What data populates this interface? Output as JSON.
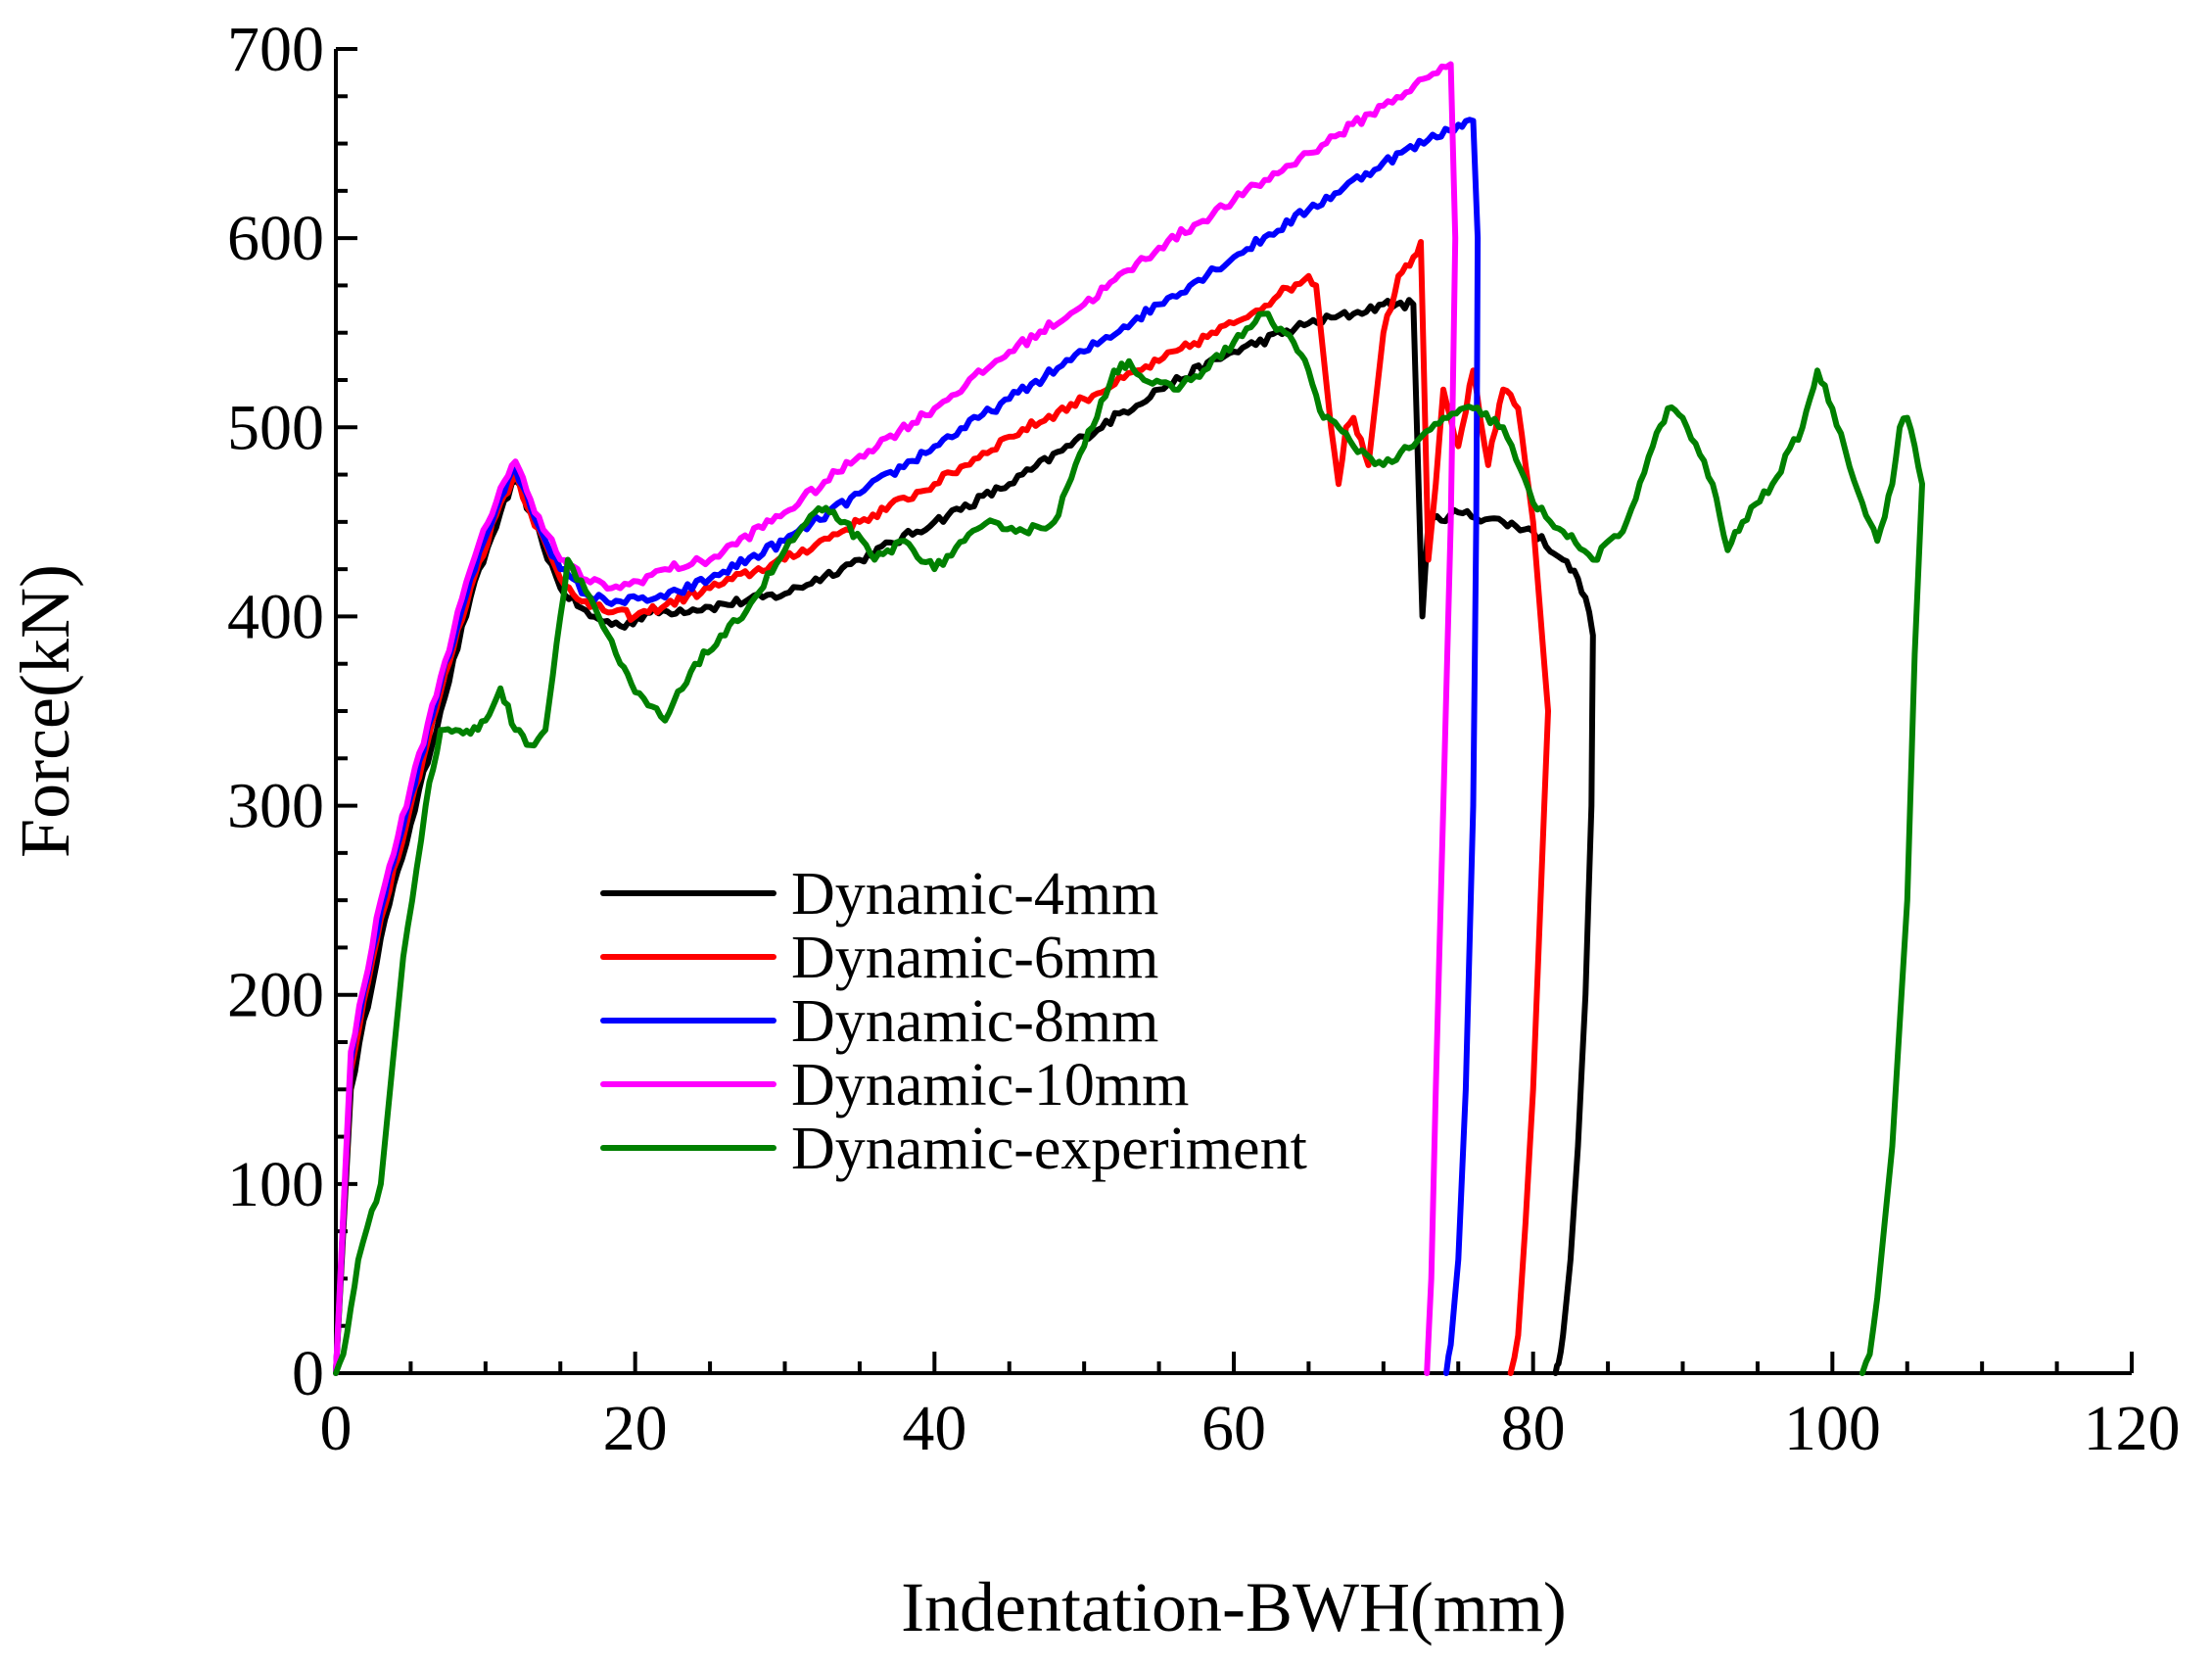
{
  "chart_data": {
    "type": "line",
    "xlabel": "Indentation-BWH(mm)",
    "ylabel": "Force(kN)",
    "xlim": [
      0,
      120
    ],
    "ylim": [
      0,
      700
    ],
    "xticks": [
      0,
      20,
      40,
      60,
      80,
      100,
      120
    ],
    "yticks": [
      0,
      100,
      200,
      300,
      400,
      500,
      600,
      700
    ],
    "grid": false,
    "legend_position": "lower-center",
    "series": [
      {
        "name": "Dynamic-4mm",
        "color": "#000000",
        "x": [
          0,
          1,
          3,
          5,
          7,
          9,
          11,
          12,
          13,
          15,
          17,
          19,
          21,
          25,
          30,
          35,
          40,
          45,
          50,
          55,
          60,
          65,
          68,
          70,
          72,
          72.6,
          73,
          75,
          78,
          80,
          82,
          83,
          83.5,
          84,
          83.9,
          83.5,
          83,
          82.5,
          82,
          81.7,
          81.5
        ],
        "y": [
          0,
          150,
          230,
          290,
          350,
          410,
          455,
          472,
          455,
          415,
          400,
          395,
          402,
          405,
          412,
          430,
          450,
          470,
          495,
          520,
          540,
          555,
          560,
          565,
          565,
          400,
          450,
          455,
          450,
          445,
          430,
          420,
          410,
          390,
          300,
          200,
          120,
          60,
          20,
          5,
          0
        ]
      },
      {
        "name": "Dynamic-6mm",
        "color": "#ff0000",
        "x": [
          0,
          1,
          3,
          5,
          7,
          9,
          11,
          12,
          13,
          15,
          17,
          20,
          25,
          30,
          35,
          40,
          45,
          50,
          55,
          60,
          63,
          65,
          65.5,
          66.5,
          67,
          67.5,
          68,
          69,
          70,
          71,
          72,
          72.5,
          73,
          73.5,
          74,
          75,
          76,
          77,
          78,
          79,
          79.5,
          80,
          80.5,
          81,
          80.5,
          80,
          79.5,
          79,
          78.5
        ],
        "y": [
          0,
          160,
          240,
          300,
          360,
          415,
          460,
          475,
          455,
          420,
          405,
          400,
          415,
          430,
          450,
          470,
          495,
          515,
          535,
          555,
          570,
          580,
          575,
          500,
          470,
          500,
          505,
          480,
          550,
          580,
          590,
          598,
          430,
          470,
          520,
          490,
          530,
          480,
          520,
          510,
          480,
          450,
          400,
          350,
          250,
          150,
          80,
          20,
          0
        ]
      },
      {
        "name": "Dynamic-8mm",
        "color": "#0000ff",
        "x": [
          0,
          1,
          3,
          5,
          7,
          9,
          11,
          12,
          13,
          15,
          17,
          19,
          22,
          25,
          30,
          35,
          40,
          45,
          50,
          55,
          60,
          65,
          70,
          73,
          75,
          76,
          76.3,
          76.2,
          76,
          75.5,
          75,
          74.5,
          74.2
        ],
        "y": [
          0,
          165,
          245,
          305,
          365,
          420,
          463,
          478,
          458,
          425,
          410,
          408,
          410,
          420,
          440,
          465,
          490,
          515,
          540,
          565,
          590,
          615,
          640,
          652,
          660,
          662,
          600,
          450,
          300,
          150,
          60,
          15,
          0
        ]
      },
      {
        "name": "Dynamic-10mm",
        "color": "#ff00ff",
        "x": [
          0,
          1,
          3,
          5,
          7,
          9,
          11,
          12,
          13,
          15,
          17,
          19,
          22,
          25,
          30,
          35,
          40,
          45,
          50,
          55,
          60,
          65,
          70,
          73,
          74.5,
          74.8,
          74.5,
          74,
          73.5,
          73.2,
          72.9
        ],
        "y": [
          0,
          170,
          250,
          310,
          368,
          425,
          468,
          482,
          462,
          430,
          418,
          415,
          425,
          430,
          455,
          485,
          510,
          540,
          565,
          595,
          620,
          645,
          670,
          685,
          692,
          600,
          450,
          300,
          150,
          50,
          0
        ]
      },
      {
        "name": "Dynamic-experiment",
        "color": "#008000",
        "x": [
          0,
          0.5,
          1.5,
          3,
          4.5,
          6,
          7,
          8,
          9,
          10,
          11,
          12,
          13,
          14,
          15,
          15.5,
          17,
          19,
          20,
          22,
          24,
          26,
          28,
          30,
          32,
          33,
          34,
          36,
          38,
          40,
          42,
          44,
          46,
          48,
          50,
          52,
          53,
          54,
          56,
          58,
          60,
          62,
          64,
          65,
          66,
          67,
          68,
          70,
          72,
          74,
          76,
          78,
          80,
          82,
          84,
          86,
          88,
          89,
          90,
          92,
          93,
          94,
          96,
          98,
          99,
          100,
          102,
          103,
          104,
          104.5,
          105,
          105.5,
          106,
          105.5,
          105,
          104,
          103,
          102.5,
          102
        ],
        "y": [
          0,
          10,
          60,
          100,
          220,
          300,
          340,
          340,
          338,
          345,
          362,
          340,
          332,
          340,
          400,
          430,
          410,
          375,
          360,
          345,
          375,
          390,
          410,
          435,
          455,
          455,
          450,
          430,
          440,
          425,
          440,
          450,
          445,
          450,
          490,
          530,
          535,
          525,
          520,
          530,
          545,
          560,
          545,
          530,
          505,
          500,
          490,
          480,
          490,
          505,
          510,
          500,
          460,
          445,
          430,
          445,
          490,
          510,
          505,
          470,
          435,
          450,
          470,
          500,
          530,
          510,
          460,
          440,
          470,
          500,
          505,
          490,
          470,
          380,
          250,
          120,
          40,
          10,
          0
        ]
      }
    ]
  }
}
